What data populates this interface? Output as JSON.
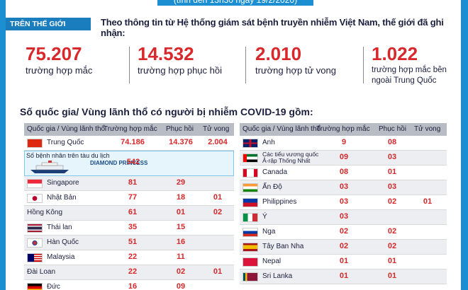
{
  "topline": "(tính đến 13h30 ngày 19/2/2020)",
  "section_tag": "TRÊN THẾ GIỚI",
  "intro": "Theo thông tin từ Hệ thống giám sát bệnh truyền nhiễm Việt Nam, thế giới đã ghi nhận:",
  "stats": [
    {
      "value": "75.207",
      "label": "trường hợp mắc"
    },
    {
      "value": "14.532",
      "label": "trường hợp phục hồi"
    },
    {
      "value": "2.010",
      "label": "trường hợp tử vong"
    },
    {
      "value": "1.022",
      "label": "trường hợp mắc bên ngoài Trung Quốc"
    }
  ],
  "subtitle": "Số quốc gia/ Vùng lãnh thổ có người bị nhiễm COVID-19 gồm:",
  "headers": {
    "country": "Quốc gia / Vùng lãnh thổ",
    "cases": "Trường hợp mắc",
    "recovered": "Phục hồi",
    "deaths": "Tử vong"
  },
  "cruise": {
    "label": "Số bệnh nhân trên tàu du lịch",
    "ship": "DIAMOND PRINCESS",
    "cases": "542"
  },
  "left_rows": [
    {
      "country": "Trung Quốc",
      "flag": "cn",
      "cases": "74.186",
      "recovered": "14.376",
      "deaths": "2.004"
    },
    {
      "country": "Singapore",
      "flag": "sg",
      "cases": "81",
      "recovered": "29",
      "deaths": ""
    },
    {
      "country": "Nhật Bản",
      "flag": "jp",
      "cases": "77",
      "recovered": "18",
      "deaths": "01"
    },
    {
      "country": "Hồng Kông",
      "flag": "",
      "cases": "61",
      "recovered": "01",
      "deaths": "02"
    },
    {
      "country": "Thái lan",
      "flag": "th",
      "cases": "35",
      "recovered": "15",
      "deaths": ""
    },
    {
      "country": "Hàn Quốc",
      "flag": "kr",
      "cases": "51",
      "recovered": "16",
      "deaths": ""
    },
    {
      "country": "Malaysia",
      "flag": "my",
      "cases": "22",
      "recovered": "11",
      "deaths": ""
    },
    {
      "country": "Đài Loan",
      "flag": "",
      "cases": "22",
      "recovered": "02",
      "deaths": "01"
    },
    {
      "country": "Đức",
      "flag": "de",
      "cases": "16",
      "recovered": "09",
      "deaths": ""
    }
  ],
  "right_rows": [
    {
      "country": "Anh",
      "flag": "gb",
      "cases": "9",
      "recovered": "08",
      "deaths": ""
    },
    {
      "country": "Các tiểu vương quốc Ả-rập Thống Nhất",
      "flag": "ae",
      "cases": "09",
      "recovered": "03",
      "deaths": ""
    },
    {
      "country": "Canada",
      "flag": "ca",
      "cases": "08",
      "recovered": "01",
      "deaths": ""
    },
    {
      "country": "Ấn Độ",
      "flag": "in",
      "cases": "03",
      "recovered": "03",
      "deaths": ""
    },
    {
      "country": "Philippines",
      "flag": "ph",
      "cases": "03",
      "recovered": "02",
      "deaths": "01"
    },
    {
      "country": "Ý",
      "flag": "it",
      "cases": "03",
      "recovered": "",
      "deaths": ""
    },
    {
      "country": "Nga",
      "flag": "ru",
      "cases": "02",
      "recovered": "02",
      "deaths": ""
    },
    {
      "country": "Tây Ban Nha",
      "flag": "es",
      "cases": "02",
      "recovered": "02",
      "deaths": ""
    },
    {
      "country": "Nepal",
      "flag": "np",
      "cases": "01",
      "recovered": "01",
      "deaths": ""
    },
    {
      "country": "Sri Lanka",
      "flag": "lk",
      "cases": "01",
      "recovered": "01",
      "deaths": ""
    }
  ]
}
